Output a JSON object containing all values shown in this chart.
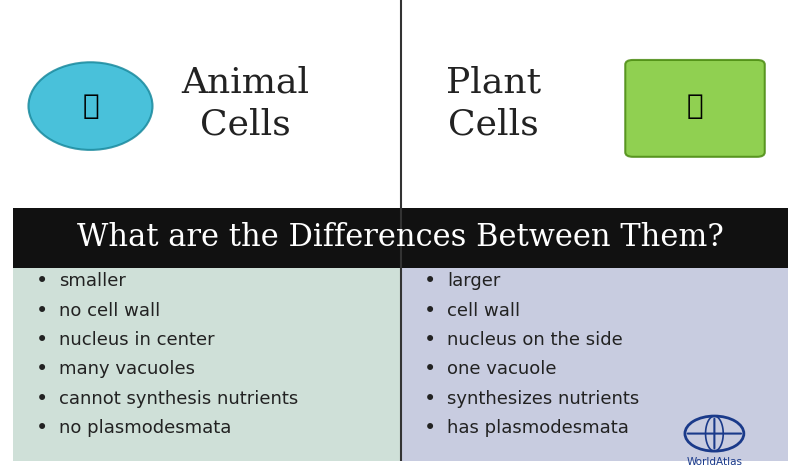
{
  "title": "What are the Differences Between Them?",
  "title_color": "#ffffff",
  "title_bg_color": "#111111",
  "header_bg_color": "#ffffff",
  "left_panel_color": "#cfe0d8",
  "right_panel_color": "#c8cce0",
  "left_header": "Animal\nCells",
  "right_header": "Plant\nCells",
  "header_font_color": "#222222",
  "divider_color": "#333333",
  "left_items": [
    "smaller",
    "no cell wall",
    "nucleus in center",
    "many vacuoles",
    "cannot synthesis nutrients",
    "no plasmodesmata"
  ],
  "right_items": [
    "larger",
    "cell wall",
    "nucleus on the side",
    "one vacuole",
    "synthesizes nutrients",
    "has plasmodesmata"
  ],
  "bullet_color": "#222222",
  "item_font_color": "#222222",
  "item_fontsize": 13,
  "header_fontsize": 26,
  "title_fontsize": 22,
  "worldatlas_color": "#1a3a8a",
  "fig_width": 8.01,
  "fig_height": 4.68
}
